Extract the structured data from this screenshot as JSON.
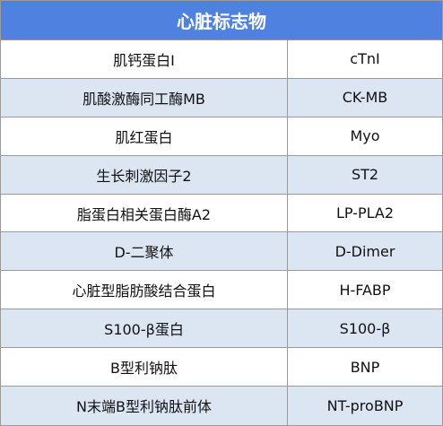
{
  "table": {
    "title": "心脏标志物",
    "header_color": "#4f81e0",
    "stripe_color": "#dce6f2",
    "rows": [
      {
        "name": "肌钙蛋白I",
        "abbr": "cTnI"
      },
      {
        "name": "肌酸激酶同工酶MB",
        "abbr": "CK-MB"
      },
      {
        "name": "肌红蛋白",
        "abbr": "Myo"
      },
      {
        "name": "生长刺激因子2",
        "abbr": "ST2"
      },
      {
        "name": "脂蛋白相关蛋白酶A2",
        "abbr": "LP-PLA2"
      },
      {
        "name": "D-二聚体",
        "abbr": "D-Dimer"
      },
      {
        "name": "心脏型脂肪酸结合蛋白",
        "abbr": "H-FABP"
      },
      {
        "name": "S100-β蛋白",
        "abbr": "S100-β"
      },
      {
        "name": "B型利钠肽",
        "abbr": "BNP"
      },
      {
        "name": "N末端B型利钠肽前体",
        "abbr": "NT-proBNP"
      }
    ]
  }
}
